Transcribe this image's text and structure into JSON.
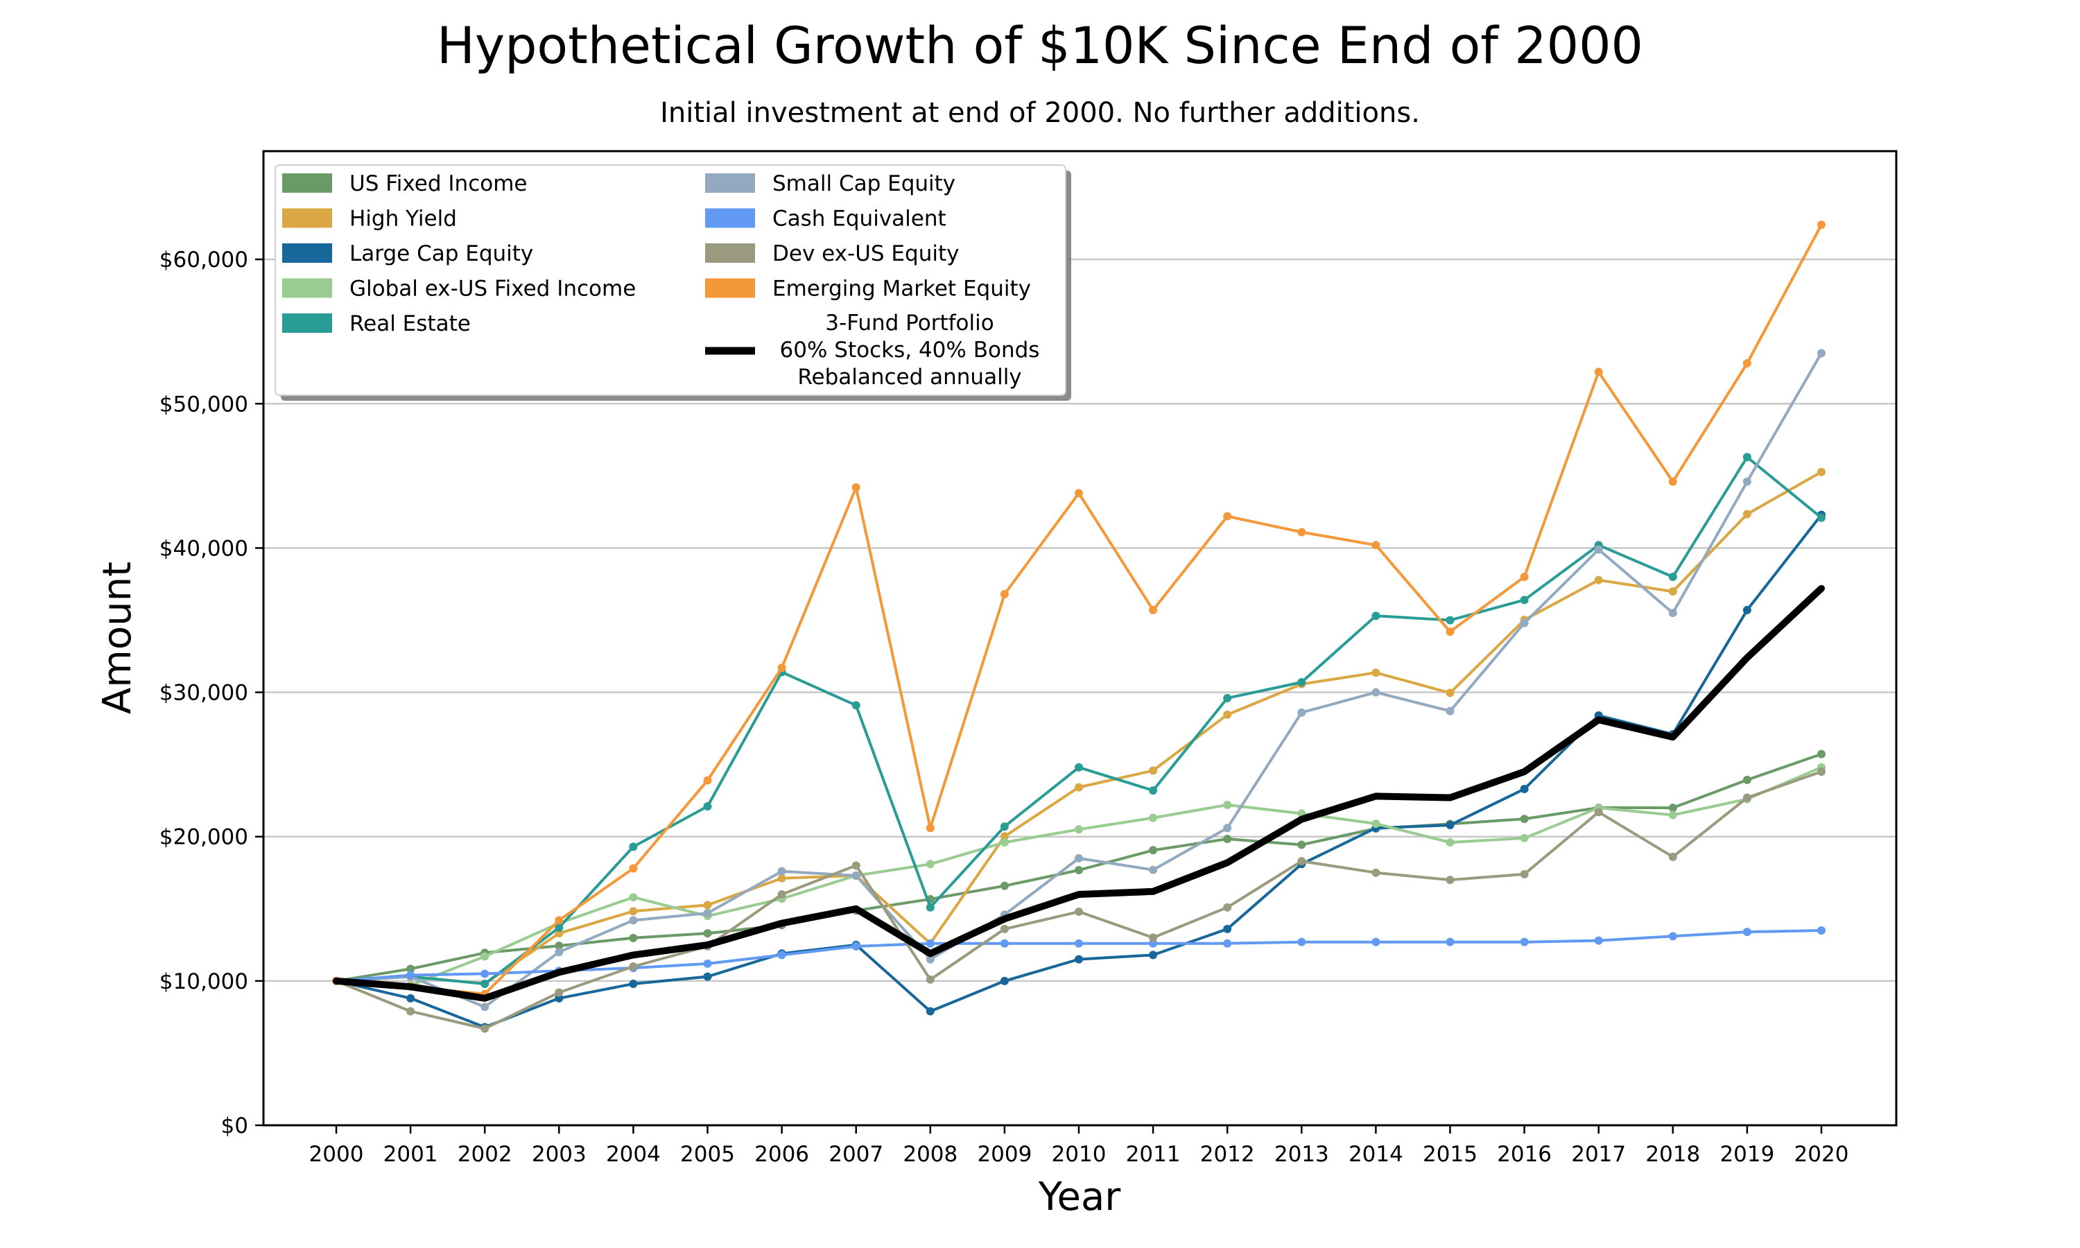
{
  "chart_data": {
    "type": "line",
    "title": "Hypothetical Growth of $10K Since End of 2000",
    "subtitle": "Initial investment at end of 2000. No further additions.",
    "xlabel": "Year",
    "ylabel": "Amount",
    "ylim": [
      0,
      67500
    ],
    "yticks": [
      0,
      10000,
      20000,
      30000,
      40000,
      50000,
      60000
    ],
    "ytick_labels": [
      "$0",
      "$10,000",
      "$20,000",
      "$30,000",
      "$40,000",
      "$50,000",
      "$60,000"
    ],
    "grid": "horizontal",
    "legend_position": "top-left",
    "x": [
      "2000",
      "2001",
      "2002",
      "2003",
      "2004",
      "2005",
      "2006",
      "2007",
      "2008",
      "2009",
      "2010",
      "2011",
      "2012",
      "2013",
      "2014",
      "2015",
      "2016",
      "2017",
      "2018",
      "2019",
      "2020"
    ],
    "series": [
      {
        "name": "US Fixed Income",
        "color": "#6a9a65",
        "width": 4,
        "markers": true,
        "values": [
          10000,
          10840,
          11950,
          12440,
          12980,
          13300,
          13870,
          14880,
          15670,
          16590,
          17680,
          19060,
          19840,
          19440,
          20560,
          20880,
          21230,
          22010,
          22000,
          23930,
          25720
        ]
      },
      {
        "name": "High Yield",
        "color": "#dba743",
        "width": 4,
        "markers": true,
        "values": [
          10000,
          10300,
          9810,
          13300,
          14830,
          15260,
          17120,
          17300,
          12600,
          20020,
          23420,
          24580,
          28450,
          30570,
          31360,
          29960,
          35020,
          37780,
          36990,
          42350,
          45270
        ]
      },
      {
        "name": "Large Cap Equity",
        "color": "#17679a",
        "width": 4,
        "markers": true,
        "values": [
          10000,
          8800,
          6800,
          8800,
          9800,
          10300,
          11900,
          12500,
          7900,
          10000,
          11500,
          11800,
          13600,
          18100,
          20600,
          20800,
          23300,
          28400,
          27100,
          35700,
          42300
        ]
      },
      {
        "name": "Global ex-US Fixed Income",
        "color": "#99cc91",
        "width": 4,
        "markers": true,
        "values": [
          10000,
          9700,
          11700,
          14000,
          15800,
          14500,
          15700,
          17300,
          18100,
          19600,
          20500,
          21300,
          22200,
          21600,
          20900,
          19600,
          19900,
          22000,
          21500,
          22600,
          24800
        ]
      },
      {
        "name": "Real Estate",
        "color": "#2a9c96",
        "width": 4,
        "markers": true,
        "values": [
          10000,
          10300,
          9800,
          13700,
          19300,
          22100,
          31400,
          29100,
          15100,
          20700,
          24800,
          23200,
          29600,
          30700,
          35300,
          35000,
          36400,
          40200,
          38000,
          46300,
          42100
        ]
      },
      {
        "name": "Small Cap Equity",
        "color": "#92a9bf",
        "width": 4,
        "markers": true,
        "values": [
          10000,
          10300,
          8200,
          12000,
          14200,
          14700,
          17600,
          17300,
          11500,
          14600,
          18500,
          17700,
          20600,
          28600,
          30000,
          28700,
          34800,
          39900,
          35500,
          44600,
          53500
        ]
      },
      {
        "name": "Cash Equivalent",
        "color": "#6199f3",
        "width": 4,
        "markers": true,
        "values": [
          10000,
          10400,
          10500,
          10700,
          10900,
          11200,
          11800,
          12400,
          12600,
          12600,
          12600,
          12600,
          12600,
          12700,
          12700,
          12700,
          12700,
          12800,
          13100,
          13400,
          13500
        ]
      },
      {
        "name": "Dev ex-US Equity",
        "color": "#9a9a7e",
        "width": 4,
        "markers": true,
        "values": [
          10000,
          7900,
          6700,
          9200,
          11000,
          12400,
          16000,
          18000,
          10100,
          13600,
          14800,
          13000,
          15100,
          18300,
          17500,
          17000,
          17400,
          21700,
          18600,
          22700,
          24500
        ]
      },
      {
        "name": "Emerging Market Equity",
        "color": "#f49939",
        "width": 4,
        "markers": true,
        "values": [
          10000,
          9600,
          9100,
          14200,
          17800,
          23900,
          31700,
          44200,
          20600,
          36800,
          43800,
          35700,
          42200,
          41100,
          40200,
          34200,
          38000,
          52200,
          44600,
          52800,
          62400
        ]
      },
      {
        "name": "3-Fund Portfolio\n60% Stocks, 40% Bonds\nRebalanced annually",
        "color": "#000000",
        "width": 10,
        "markers": false,
        "values": [
          10000,
          9600,
          8800,
          10600,
          11800,
          12500,
          14000,
          15000,
          11900,
          14300,
          16000,
          16200,
          18200,
          21200,
          22800,
          22700,
          24500,
          28100,
          26900,
          32400,
          37200
        ]
      }
    ]
  }
}
